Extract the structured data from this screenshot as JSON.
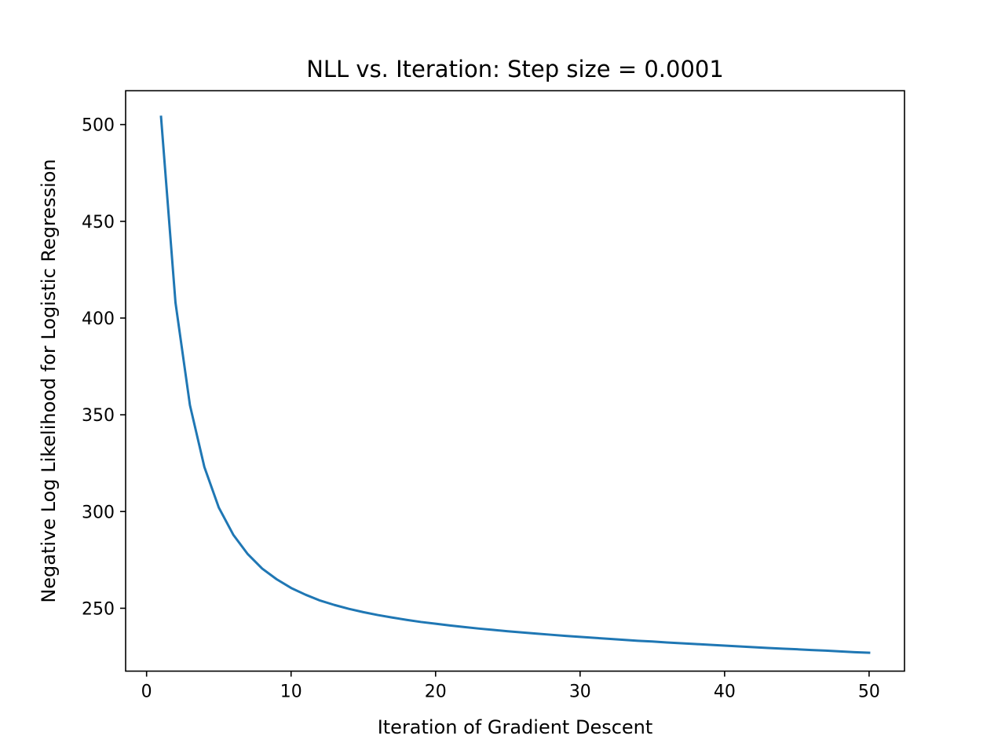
{
  "chart_data": {
    "type": "line",
    "title": "NLL vs. Iteration: Step size = 0.0001",
    "xlabel": "Iteration of Gradient Descent",
    "ylabel": "Negative Log Likelihood for Logistic Regression",
    "xlim": [
      -1.45,
      52.45
    ],
    "ylim": [
      217.5,
      517.5
    ],
    "xticks": [
      0,
      10,
      20,
      30,
      40,
      50
    ],
    "yticks": [
      250,
      300,
      350,
      400,
      450,
      500
    ],
    "grid": false,
    "legend": "none",
    "line_color": "#1f77b4",
    "series": [
      {
        "x": [
          1,
          2,
          3,
          4,
          5,
          6,
          7,
          8,
          9,
          10,
          11,
          12,
          13,
          14,
          15,
          16,
          17,
          18,
          19,
          20,
          21,
          22,
          23,
          24,
          25,
          26,
          27,
          28,
          29,
          30,
          31,
          32,
          33,
          34,
          35,
          36,
          37,
          38,
          39,
          40,
          41,
          42,
          43,
          44,
          45,
          46,
          47,
          48,
          49,
          50
        ],
        "values": [
          504,
          408,
          355,
          323,
          302,
          288,
          278,
          270.5,
          265,
          260.5,
          257,
          254,
          251.7,
          249.7,
          248,
          246.5,
          245.2,
          244,
          242.9,
          242,
          241.1,
          240.3,
          239.5,
          238.8,
          238.1,
          237.5,
          236.9,
          236.3,
          235.7,
          235.2,
          234.7,
          234.2,
          233.7,
          233.2,
          232.8,
          232.3,
          231.9,
          231.5,
          231.1,
          230.7,
          230.3,
          229.9,
          229.5,
          229.1,
          228.8,
          228.4,
          228.1,
          227.7,
          227.3,
          227
        ]
      }
    ]
  }
}
